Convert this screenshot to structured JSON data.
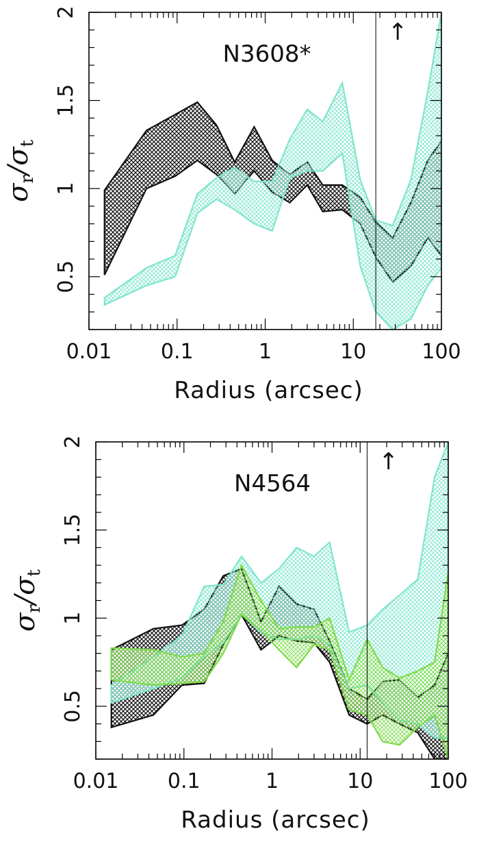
{
  "chart_data": [
    {
      "type": "area",
      "title": "N3608*",
      "xlabel": "Radius (arcsec)",
      "ylabel": "σr/σt",
      "xscale": "log",
      "xlim": [
        0.01,
        100
      ],
      "ylim": [
        0.2,
        2.0
      ],
      "xticks": [
        "0.01",
        "0.1",
        "1",
        "10",
        "100"
      ],
      "yticks": [
        "0.5",
        "1",
        "1.5",
        "2"
      ],
      "vline_x": 18,
      "arrow_marker": "↑",
      "arrow_x": 32,
      "series": [
        {
          "color": "#111111",
          "x": [
            0.015,
            0.045,
            0.095,
            0.17,
            0.28,
            0.45,
            0.75,
            1.2,
            1.9,
            3.0,
            4.5,
            7.5,
            12,
            18,
            28,
            45,
            70,
            100
          ],
          "upper": [
            0.99,
            1.33,
            1.42,
            1.49,
            1.36,
            1.15,
            1.35,
            1.16,
            1.08,
            1.15,
            1.02,
            1.02,
            0.95,
            0.81,
            0.72,
            0.92,
            1.16,
            1.27
          ],
          "lower": [
            0.51,
            1.0,
            1.07,
            1.16,
            1.08,
            0.97,
            1.1,
            0.98,
            0.92,
            1.02,
            0.87,
            0.88,
            0.8,
            0.61,
            0.47,
            0.56,
            0.72,
            0.62
          ]
        },
        {
          "color": "#7fe6cc",
          "x": [
            0.015,
            0.045,
            0.095,
            0.17,
            0.28,
            0.45,
            0.75,
            1.2,
            1.9,
            3.0,
            4.5,
            7.5,
            12,
            18,
            28,
            45,
            70,
            100
          ],
          "upper": [
            0.38,
            0.55,
            0.62,
            0.97,
            1.06,
            1.12,
            1.04,
            1.04,
            1.28,
            1.45,
            1.38,
            1.6,
            1.05,
            0.82,
            0.79,
            1.05,
            1.55,
            2.0
          ],
          "lower": [
            0.34,
            0.45,
            0.5,
            0.86,
            0.94,
            0.88,
            0.8,
            0.76,
            1.06,
            1.1,
            1.1,
            1.2,
            0.56,
            0.3,
            0.2,
            0.26,
            0.45,
            0.55
          ]
        }
      ]
    },
    {
      "type": "area",
      "title": "N4564",
      "xlabel": "Radius (arcsec)",
      "ylabel": "σr/σt",
      "xscale": "log",
      "xlim": [
        0.01,
        100
      ],
      "ylim": [
        0.2,
        2.0
      ],
      "xticks": [
        "0.01",
        "0.1",
        "1",
        "10",
        "100"
      ],
      "yticks": [
        "0.5",
        "1",
        "1.5",
        "2"
      ],
      "vline_x": 12,
      "arrow_marker": "↑",
      "arrow_x": 21,
      "series": [
        {
          "color": "#111111",
          "x": [
            0.015,
            0.045,
            0.095,
            0.17,
            0.28,
            0.45,
            0.75,
            1.2,
            1.9,
            3.0,
            4.5,
            7.5,
            12,
            18,
            28,
            45,
            70,
            100
          ],
          "upper": [
            0.82,
            0.94,
            0.96,
            1.05,
            1.24,
            1.28,
            0.98,
            1.18,
            1.08,
            1.05,
            0.87,
            0.6,
            0.54,
            0.64,
            0.65,
            0.55,
            0.62,
            0.8
          ],
          "lower": [
            0.38,
            0.45,
            0.62,
            0.63,
            0.85,
            1.02,
            0.82,
            0.9,
            0.87,
            0.86,
            0.75,
            0.45,
            0.4,
            0.45,
            0.4,
            0.35,
            0.2,
            0.2
          ]
        },
        {
          "color": "#7fe6cc",
          "x": [
            0.015,
            0.045,
            0.095,
            0.17,
            0.28,
            0.45,
            0.75,
            1.2,
            1.9,
            3.0,
            4.5,
            7.5,
            12,
            18,
            28,
            45,
            70,
            100
          ],
          "upper": [
            0.62,
            0.78,
            0.9,
            1.18,
            1.19,
            1.35,
            1.2,
            1.28,
            1.4,
            1.35,
            1.43,
            0.92,
            0.96,
            1.05,
            1.13,
            1.22,
            1.8,
            2.0
          ],
          "lower": [
            0.52,
            0.6,
            0.66,
            0.78,
            0.86,
            1.02,
            0.92,
            0.88,
            0.88,
            0.9,
            0.85,
            0.6,
            0.62,
            0.52,
            0.42,
            0.4,
            0.32,
            0.32
          ]
        },
        {
          "color": "#7ddc4a",
          "x": [
            0.015,
            0.045,
            0.095,
            0.17,
            0.28,
            0.45,
            0.75,
            1.2,
            1.9,
            3.0,
            4.5,
            7.5,
            12,
            18,
            28,
            45,
            70,
            100
          ],
          "upper": [
            0.83,
            0.82,
            0.78,
            0.8,
            0.98,
            1.3,
            1.1,
            0.94,
            0.95,
            0.95,
            1.0,
            0.65,
            0.88,
            0.72,
            0.66,
            0.7,
            0.75,
            1.26
          ],
          "lower": [
            0.65,
            0.62,
            0.63,
            0.64,
            0.8,
            1.02,
            0.93,
            0.82,
            0.72,
            0.85,
            0.82,
            0.48,
            0.45,
            0.3,
            0.28,
            0.38,
            0.45,
            0.2
          ]
        }
      ]
    }
  ]
}
